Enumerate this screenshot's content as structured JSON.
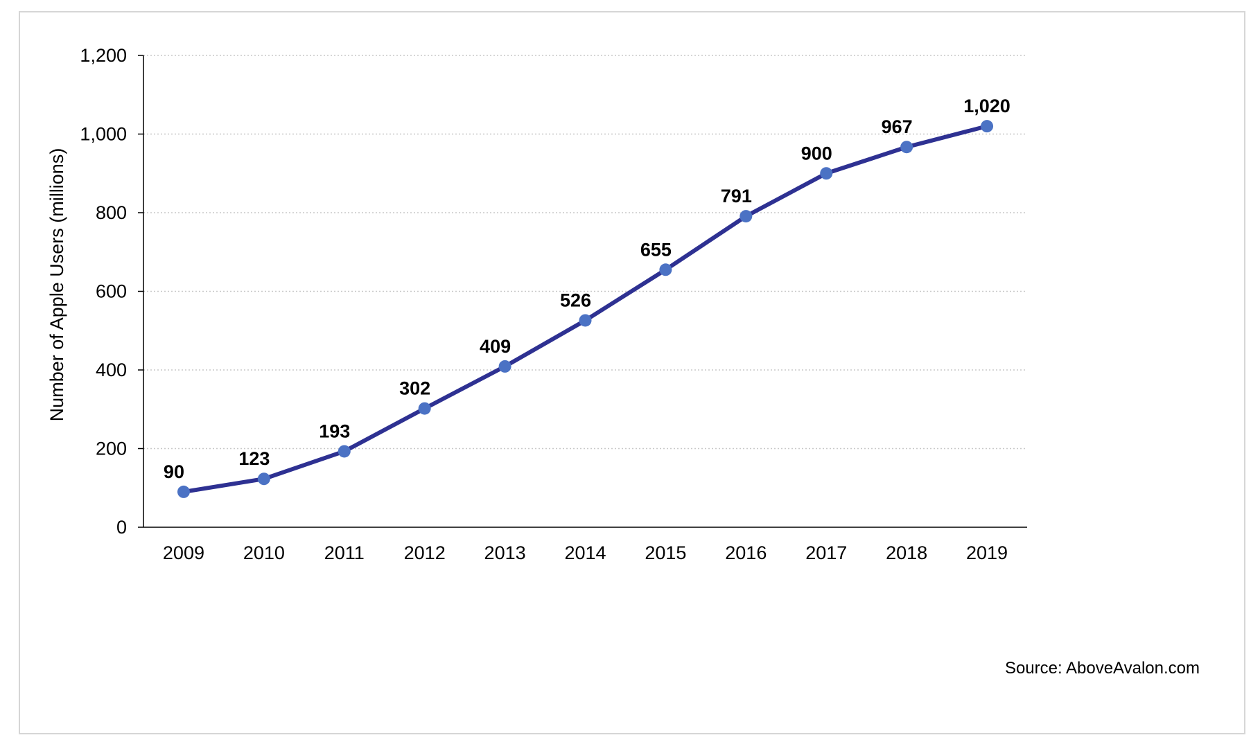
{
  "chart_data": {
    "type": "line",
    "title": "",
    "xlabel": "",
    "ylabel": "Number of Apple Users (millions)",
    "x": [
      "2009",
      "2010",
      "2011",
      "2012",
      "2013",
      "2014",
      "2015",
      "2016",
      "2017",
      "2018",
      "2019"
    ],
    "values": [
      90,
      123,
      193,
      302,
      409,
      526,
      655,
      791,
      900,
      967,
      1020
    ],
    "data_labels": [
      "90",
      "123",
      "193",
      "302",
      "409",
      "526",
      "655",
      "791",
      "900",
      "967",
      "1,020"
    ],
    "ylim": [
      0,
      1200
    ],
    "yticks": [
      0,
      200,
      400,
      600,
      800,
      1000,
      1200
    ],
    "ytick_labels": [
      "0",
      "200",
      "400",
      "600",
      "800",
      "1,000",
      "1,200"
    ],
    "grid": "horizontal dotted",
    "legend": "none",
    "line_color": "#2e3192",
    "marker_color": "#4b72c4",
    "source": "Source: AboveAvalon.com"
  }
}
